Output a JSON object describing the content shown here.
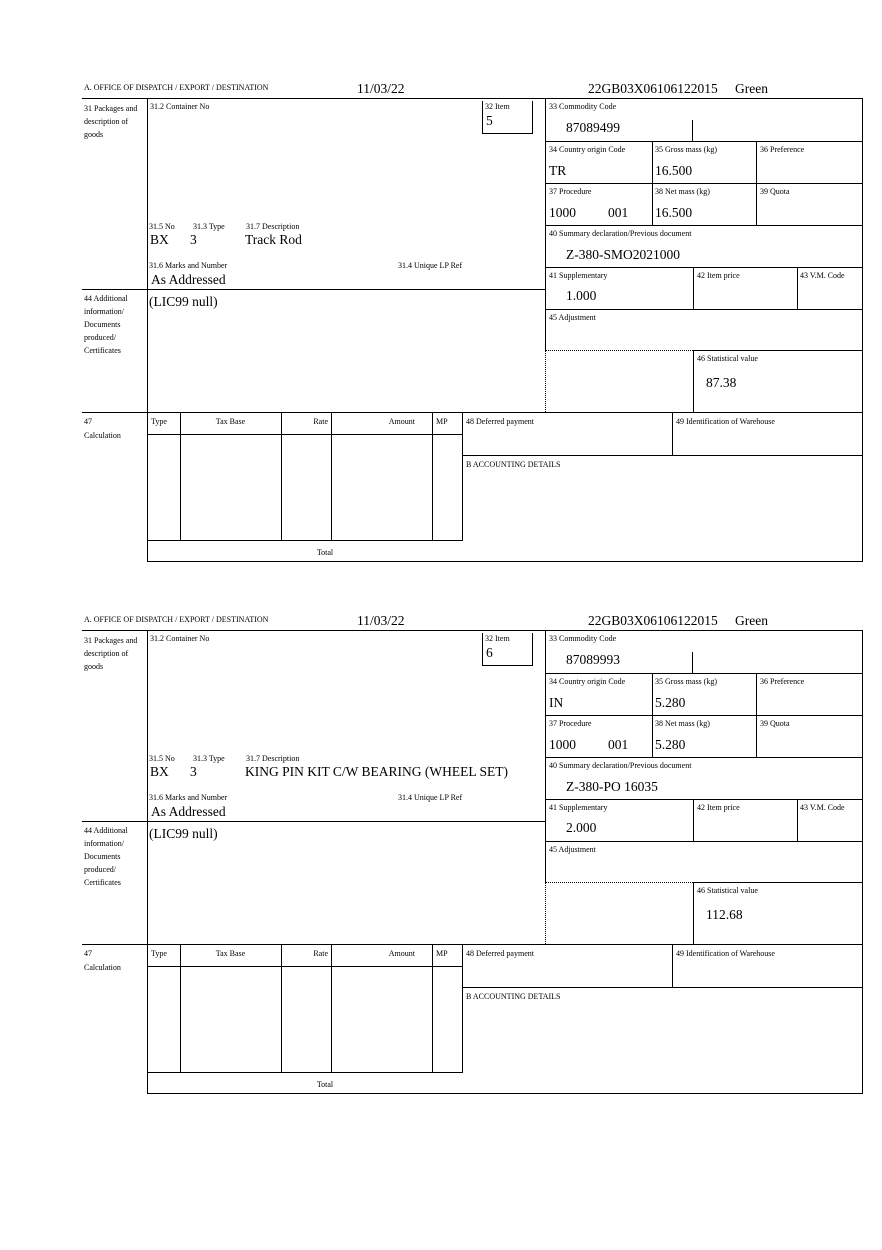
{
  "labels": {
    "office": "A.  OFFICE OF DISPATCH / EXPORT / DESTINATION",
    "packages": "31 Packages and description of goods",
    "container_no": "31.2 Container No",
    "item": "32 Item",
    "commodity_code": "33 Commodity Code",
    "country_origin": "34 Country origin Code",
    "gross_mass": "35 Gross mass (kg)",
    "preference": "36 Preference",
    "procedure": "37 Procedure",
    "net_mass": "38 Net mass (kg)",
    "quota": "39 Quota",
    "summary_decl": "40 Summary declaration/Previous document",
    "pkg_no": "31.5 No",
    "pkg_type": "31.3 Type",
    "pkg_desc": "31.7 Description",
    "marks": "31.6 Marks and Number",
    "unique_lp": "31.4 Unique LP Ref",
    "supplementary": "41 Supplementary",
    "item_price": "42 Item price",
    "vm_code": "43 V.M. Code",
    "additional_info": "44 Additional information/ Documents produced/ Certificates",
    "adjustment": "45 Adjustment",
    "stat_value": "46 Statistical value",
    "calc_no": "47",
    "calculation": "Calculation",
    "col_type": "Type",
    "col_tax_base": "Tax Base",
    "col_rate": "Rate",
    "col_amount": "Amount",
    "col_mp": "MP",
    "deferred": "48 Deferred payment",
    "warehouse": "49 Identification of Warehouse",
    "accounting": "B ACCOUNTING DETAILS",
    "total": "Total"
  },
  "forms": [
    {
      "date": "11/03/22",
      "reference": "22GB03X06106122015",
      "route": "Green",
      "item": "5",
      "commodity_code": "87089499",
      "country_origin": "TR",
      "gross_mass": "16.500",
      "procedure": "1000",
      "procedure_sub": "001",
      "net_mass": "16.500",
      "summary_decl": "Z-380-SMO2021000",
      "pkg_no": "BX",
      "pkg_type": "3",
      "pkg_desc": "Track Rod",
      "marks": "As Addressed",
      "supplementary": "1.000",
      "additional_info": "(LIC99 null)",
      "stat_value": "87.38"
    },
    {
      "date": "11/03/22",
      "reference": "22GB03X06106122015",
      "route": "Green",
      "item": "6",
      "commodity_code": "87089993",
      "country_origin": "IN",
      "gross_mass": "5.280",
      "procedure": "1000",
      "procedure_sub": "001",
      "net_mass": "5.280",
      "summary_decl": "Z-380-PO 16035",
      "pkg_no": "BX",
      "pkg_type": "3",
      "pkg_desc": "KING PIN KIT C/W BEARING (WHEEL SET)",
      "marks": "As Addressed",
      "supplementary": "2.000",
      "additional_info": "(LIC99 null)",
      "stat_value": "112.68"
    }
  ]
}
